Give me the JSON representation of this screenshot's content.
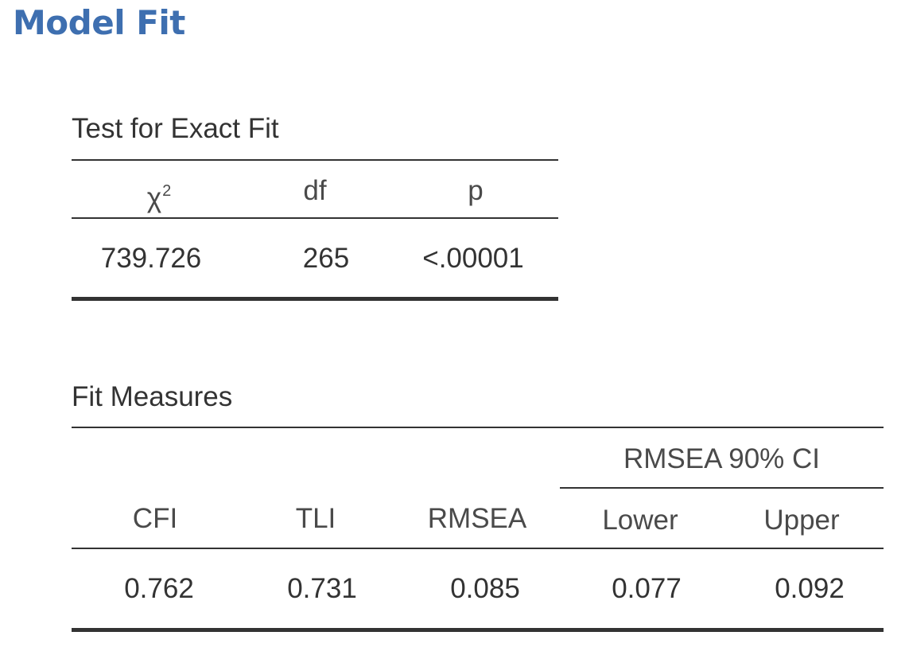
{
  "title": "Model Fit",
  "exact_fit": {
    "title": "Test for Exact Fit",
    "headers": {
      "chi": "χ",
      "chi_superscript": "2",
      "df": "df",
      "p": "p"
    },
    "row": {
      "chi": "739.726",
      "df": "265",
      "p": "<.00001"
    }
  },
  "fit_measures": {
    "title": "Fit Measures",
    "group_header": "RMSEA 90% CI",
    "headers": {
      "cfi": "CFI",
      "tli": "TLI",
      "rmsea": "RMSEA",
      "lower": "Lower",
      "upper": "Upper"
    },
    "row": {
      "cfi": "0.762",
      "tli": "0.731",
      "rmsea": "0.085",
      "lower": "0.077",
      "upper": "0.092"
    }
  }
}
